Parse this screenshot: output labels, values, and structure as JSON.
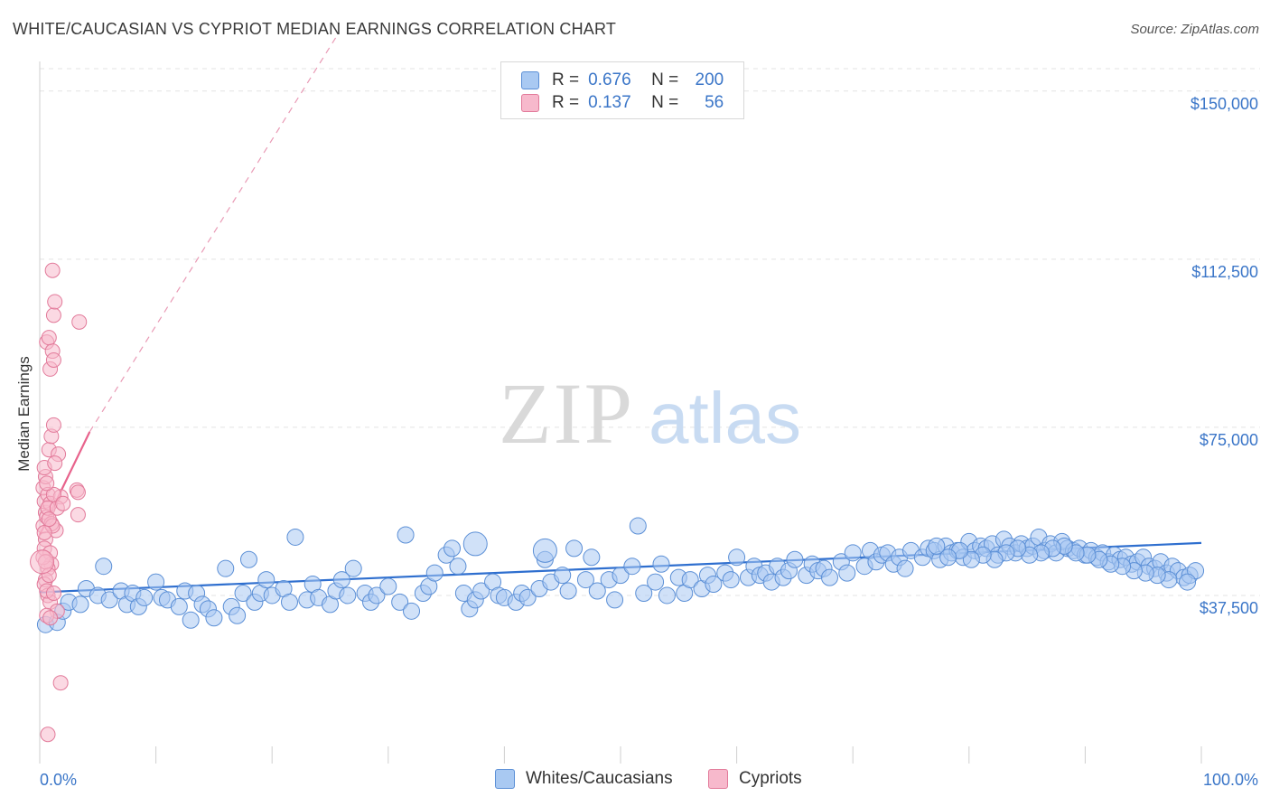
{
  "header": {
    "title": "WHITE/CAUCASIAN VS CYPRIOT MEDIAN EARNINGS CORRELATION CHART",
    "source": "Source: ZipAtlas.com"
  },
  "watermark": {
    "zip": "ZIP",
    "atlas": "atlas"
  },
  "legend": {
    "rows": [
      {
        "r_label": "R =",
        "r_value": "0.676",
        "n_label": "N =",
        "n_value": "200",
        "color": "#a9c9f2",
        "border": "#5b8fd6"
      },
      {
        "r_label": "R =",
        "r_value": "0.137",
        "n_label": "N =",
        "n_value": "56",
        "color": "#f7b9cc",
        "border": "#e27a9a"
      }
    ]
  },
  "bottom_legend": {
    "items": [
      {
        "label": "Whites/Caucasians",
        "color": "#a9c9f2",
        "border": "#5b8fd6"
      },
      {
        "label": "Cypriots",
        "color": "#f7b9cc",
        "border": "#e27a9a"
      }
    ]
  },
  "chart_data": {
    "type": "scatter",
    "title": "WHITE/CAUCASIAN VS CYPRIOT MEDIAN EARNINGS CORRELATION CHART",
    "xlabel": "",
    "ylabel": "Median Earnings",
    "xlim": [
      0,
      100
    ],
    "ylim": [
      0,
      155000
    ],
    "x_tick_labels": [
      "0.0%",
      "100.0%"
    ],
    "y_ticks": [
      37500,
      75000,
      112500,
      150000
    ],
    "y_tick_labels": [
      "$37,500",
      "$75,000",
      "$112,500",
      "$150,000"
    ],
    "series": [
      {
        "name": "Whites/Caucasians",
        "color": "#a9c9f2",
        "stroke": "#5b8fd6",
        "trend": {
          "x": [
            0,
            100
          ],
          "y": [
            38200,
            49200
          ],
          "color": "#2f6fcf"
        },
        "points": [
          [
            0.5,
            31000
          ],
          [
            1.5,
            31500
          ],
          [
            2,
            34000
          ],
          [
            2.5,
            36000
          ],
          [
            3.5,
            35500
          ],
          [
            4,
            39000
          ],
          [
            5,
            37500
          ],
          [
            5.5,
            44000
          ],
          [
            6,
            36500
          ],
          [
            7,
            38500
          ],
          [
            7.5,
            35500
          ],
          [
            8,
            38000
          ],
          [
            8.5,
            35000
          ],
          [
            9,
            37000
          ],
          [
            10,
            40500
          ],
          [
            10.5,
            37000
          ],
          [
            11,
            36500
          ],
          [
            12,
            35000
          ],
          [
            12.5,
            38500
          ],
          [
            13,
            32000
          ],
          [
            13.5,
            38000
          ],
          [
            14,
            35500
          ],
          [
            14.5,
            34500
          ],
          [
            15,
            32500
          ],
          [
            16,
            43500
          ],
          [
            16.5,
            35000
          ],
          [
            17,
            33000
          ],
          [
            17.5,
            38000
          ],
          [
            18,
            45500
          ],
          [
            18.5,
            36000
          ],
          [
            19,
            38000
          ],
          [
            19.5,
            41000
          ],
          [
            20,
            37500
          ],
          [
            21,
            39000
          ],
          [
            21.5,
            36000
          ],
          [
            22,
            50500
          ],
          [
            23,
            36500
          ],
          [
            23.5,
            40000
          ],
          [
            24,
            37000
          ],
          [
            25,
            35500
          ],
          [
            25.5,
            38500
          ],
          [
            26,
            41000
          ],
          [
            26.5,
            37500
          ],
          [
            27,
            43500
          ],
          [
            28,
            38000
          ],
          [
            28.5,
            36000
          ],
          [
            29,
            37500
          ],
          [
            30,
            39500
          ],
          [
            31,
            36000
          ],
          [
            31.5,
            51000
          ],
          [
            32,
            34000
          ],
          [
            33,
            38000
          ],
          [
            33.5,
            39500
          ],
          [
            34,
            42500
          ],
          [
            35,
            46500
          ],
          [
            35.5,
            48000
          ],
          [
            36,
            44000
          ],
          [
            36.5,
            38000
          ],
          [
            37,
            34500
          ],
          [
            37.5,
            36500
          ],
          [
            38,
            38500
          ],
          [
            39,
            40500
          ],
          [
            39.5,
            37500
          ],
          [
            40,
            37000
          ],
          [
            41,
            36000
          ],
          [
            41.5,
            38000
          ],
          [
            42,
            37000
          ],
          [
            43,
            39000
          ],
          [
            43.5,
            45500
          ],
          [
            44,
            40500
          ],
          [
            45,
            42000
          ],
          [
            45.5,
            38500
          ],
          [
            46,
            48000
          ],
          [
            47,
            41000
          ],
          [
            47.5,
            46000
          ],
          [
            48,
            38500
          ],
          [
            49,
            41000
          ],
          [
            49.5,
            36500
          ],
          [
            50,
            42000
          ],
          [
            51,
            44000
          ],
          [
            51.5,
            53000
          ],
          [
            52,
            38000
          ],
          [
            53,
            40500
          ],
          [
            53.5,
            44500
          ],
          [
            54,
            37500
          ],
          [
            55,
            41500
          ],
          [
            55.5,
            38000
          ],
          [
            56,
            41000
          ],
          [
            57,
            39000
          ],
          [
            57.5,
            42000
          ],
          [
            58,
            40000
          ],
          [
            59,
            42500
          ],
          [
            59.5,
            41000
          ],
          [
            60,
            46000
          ],
          [
            61,
            41500
          ],
          [
            61.5,
            44000
          ],
          [
            62,
            42000
          ],
          [
            62.5,
            42500
          ],
          [
            63,
            40500
          ],
          [
            63.5,
            44000
          ],
          [
            64,
            41500
          ],
          [
            64.5,
            43000
          ],
          [
            65,
            45500
          ],
          [
            66,
            42000
          ],
          [
            66.5,
            44500
          ],
          [
            67,
            43000
          ],
          [
            67.5,
            43500
          ],
          [
            68,
            41500
          ],
          [
            69,
            45000
          ],
          [
            69.5,
            42500
          ],
          [
            70,
            47000
          ],
          [
            71,
            44000
          ],
          [
            71.5,
            47500
          ],
          [
            72,
            45000
          ],
          [
            72.5,
            46500
          ],
          [
            73,
            47000
          ],
          [
            73.5,
            44500
          ],
          [
            74,
            46000
          ],
          [
            74.5,
            43500
          ],
          [
            75,
            47500
          ],
          [
            76,
            46000
          ],
          [
            76.5,
            48000
          ],
          [
            77,
            47500
          ],
          [
            77.5,
            45500
          ],
          [
            78,
            48500
          ],
          [
            78.5,
            47000
          ],
          [
            79,
            47500
          ],
          [
            79.5,
            46000
          ],
          [
            80,
            49500
          ],
          [
            80.5,
            47500
          ],
          [
            81,
            48500
          ],
          [
            81.5,
            48000
          ],
          [
            82,
            49000
          ],
          [
            82.5,
            46500
          ],
          [
            83,
            50000
          ],
          [
            83.5,
            48500
          ],
          [
            84,
            47000
          ],
          [
            84.5,
            49000
          ],
          [
            85,
            48000
          ],
          [
            85.5,
            48500
          ],
          [
            86,
            50500
          ],
          [
            86.5,
            47500
          ],
          [
            87,
            49000
          ],
          [
            87.5,
            47000
          ],
          [
            88,
            49500
          ],
          [
            88.5,
            48000
          ],
          [
            89,
            47500
          ],
          [
            89.5,
            48000
          ],
          [
            90,
            46500
          ],
          [
            90.5,
            47500
          ],
          [
            91,
            46000
          ],
          [
            91.5,
            47000
          ],
          [
            92,
            45000
          ],
          [
            92.5,
            46500
          ],
          [
            93,
            45500
          ],
          [
            93.5,
            46000
          ],
          [
            94,
            44500
          ],
          [
            94.5,
            45000
          ],
          [
            95,
            46000
          ],
          [
            95.5,
            44000
          ],
          [
            96,
            43500
          ],
          [
            96.5,
            45000
          ],
          [
            97,
            42500
          ],
          [
            97.5,
            44000
          ],
          [
            98,
            43000
          ],
          [
            98.5,
            41500
          ],
          [
            99,
            42000
          ],
          [
            99.5,
            43000
          ],
          [
            98.8,
            40500
          ],
          [
            97.2,
            41000
          ],
          [
            96.2,
            42000
          ],
          [
            95.2,
            42500
          ],
          [
            94.2,
            43000
          ],
          [
            93.2,
            44000
          ],
          [
            92.2,
            44500
          ],
          [
            91.2,
            45500
          ],
          [
            90.2,
            46500
          ],
          [
            89.2,
            47000
          ],
          [
            88.2,
            48500
          ],
          [
            87.2,
            48000
          ],
          [
            86.2,
            47000
          ],
          [
            85.2,
            46500
          ],
          [
            84.2,
            48000
          ],
          [
            83.2,
            47000
          ],
          [
            82.2,
            45500
          ],
          [
            81.2,
            46500
          ],
          [
            80.2,
            45500
          ],
          [
            79.2,
            47500
          ],
          [
            78.2,
            46000
          ],
          [
            77.2,
            48500
          ]
        ],
        "big_points": [
          [
            37.5,
            49000
          ],
          [
            43.5,
            47500
          ]
        ]
      },
      {
        "name": "Cypriots",
        "color": "#f7b9cc",
        "stroke": "#e27a9a",
        "trend_solid": {
          "x": [
            0,
            4.3
          ],
          "y": [
            51000,
            74000
          ],
          "color": "#e8638c"
        },
        "trend_dashed": {
          "x": [
            4.3,
            25.5
          ],
          "y": [
            74000,
            162000
          ],
          "color": "#e99ab5"
        },
        "points": [
          [
            0.3,
            53000
          ],
          [
            0.5,
            56000
          ],
          [
            0.4,
            58500
          ],
          [
            0.6,
            55000
          ],
          [
            0.3,
            61500
          ],
          [
            0.5,
            64000
          ],
          [
            0.7,
            60000
          ],
          [
            0.4,
            66000
          ],
          [
            0.8,
            70000
          ],
          [
            1.0,
            73000
          ],
          [
            1.2,
            75500
          ],
          [
            0.6,
            94000
          ],
          [
            0.9,
            88000
          ],
          [
            1.1,
            92000
          ],
          [
            1.2,
            100000
          ],
          [
            1.3,
            103000
          ],
          [
            1.1,
            110000
          ],
          [
            3.4,
            98500
          ],
          [
            0.8,
            95000
          ],
          [
            1.2,
            90000
          ],
          [
            1.6,
            69000
          ],
          [
            1.3,
            67000
          ],
          [
            0.9,
            58000
          ],
          [
            0.7,
            57000
          ],
          [
            0.5,
            50000
          ],
          [
            0.4,
            48000
          ],
          [
            0.9,
            47000
          ],
          [
            1.0,
            44500
          ],
          [
            0.7,
            43500
          ],
          [
            0.5,
            41000
          ],
          [
            0.4,
            40000
          ],
          [
            0.7,
            37500
          ],
          [
            0.9,
            36000
          ],
          [
            1.5,
            34000
          ],
          [
            0.6,
            33000
          ],
          [
            0.9,
            32500
          ],
          [
            3.2,
            61000
          ],
          [
            3.3,
            60500
          ],
          [
            3.3,
            55500
          ],
          [
            1.8,
            59500
          ],
          [
            1.4,
            52000
          ],
          [
            1.0,
            53500
          ],
          [
            0.3,
            46000
          ],
          [
            0.5,
            45000
          ],
          [
            0.8,
            42000
          ],
          [
            0.6,
            38500
          ],
          [
            1.2,
            38000
          ],
          [
            1.8,
            18000
          ],
          [
            0.7,
            6500
          ],
          [
            1.1,
            53000
          ],
          [
            1.5,
            57000
          ],
          [
            0.4,
            51500
          ],
          [
            0.8,
            54500
          ],
          [
            1.2,
            60000
          ],
          [
            0.6,
            62500
          ],
          [
            2.0,
            58000
          ]
        ],
        "big_points": [
          [
            0.2,
            45000
          ]
        ]
      }
    ]
  }
}
